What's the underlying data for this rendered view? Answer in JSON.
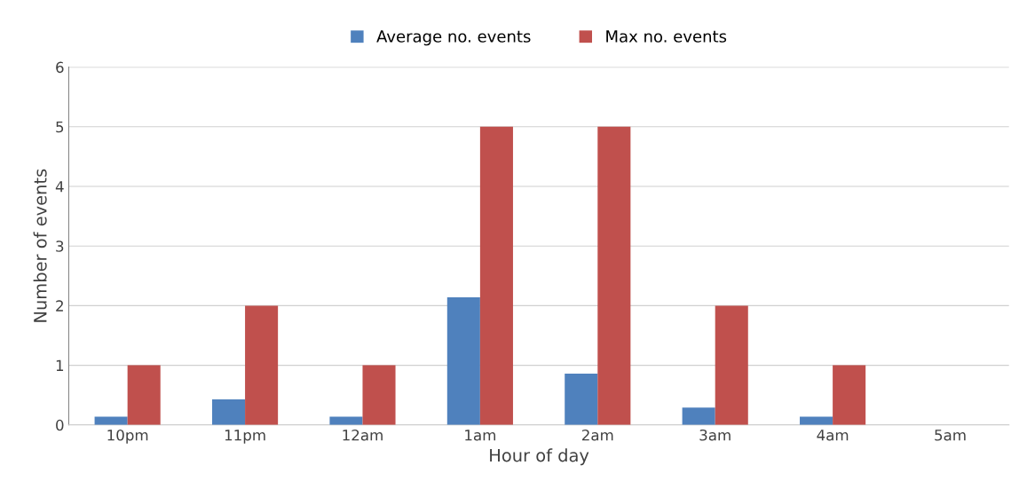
{
  "chart_data": {
    "type": "bar",
    "xlabel": "Hour of day",
    "ylabel": "Number of events",
    "categories": [
      "10pm",
      "11pm",
      "12am",
      "1am",
      "2am",
      "3am",
      "4am",
      "5am"
    ],
    "series": [
      {
        "name": "Average no. events",
        "color": "#4f81bd",
        "values": [
          0.14,
          0.43,
          0.14,
          2.14,
          0.86,
          0.29,
          0.14,
          0
        ]
      },
      {
        "name": "Max no. events",
        "color": "#c0504d",
        "values": [
          1,
          2,
          1,
          5,
          5,
          2,
          1,
          0
        ]
      }
    ],
    "ylim": [
      0,
      6
    ],
    "yticks": [
      0,
      1,
      2,
      3,
      4,
      5,
      6
    ],
    "grid": "y",
    "legend": "top"
  }
}
